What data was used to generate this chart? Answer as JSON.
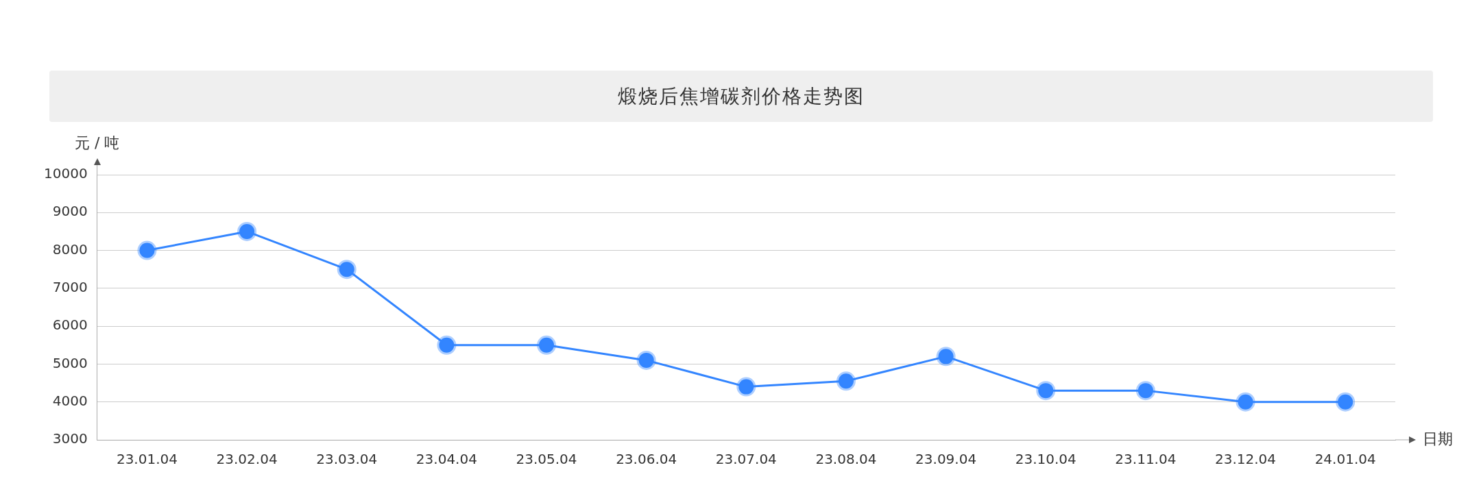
{
  "chart_data": {
    "type": "line",
    "title": "煅烧后焦增碳剂价格走势图",
    "ylabel": "元 / 吨",
    "xlabel": "日期",
    "categories": [
      "23.01.04",
      "23.02.04",
      "23.03.04",
      "23.04.04",
      "23.05.04",
      "23.06.04",
      "23.07.04",
      "23.08.04",
      "23.09.04",
      "23.10.04",
      "23.11.04",
      "23.12.04",
      "24.01.04"
    ],
    "series": [
      {
        "color": "#3385ff",
        "values": [
          8000,
          8500,
          7500,
          5500,
          5500,
          5100,
          4400,
          4550,
          5200,
          4300,
          4300,
          4000,
          4000
        ]
      }
    ],
    "ylim": [
      3000,
      10000
    ],
    "yticks": [
      3000,
      4000,
      5000,
      6000,
      7000,
      8000,
      9000,
      10000
    ],
    "grid": "y",
    "legend": false,
    "marker": "circle",
    "line_style": "solid"
  }
}
